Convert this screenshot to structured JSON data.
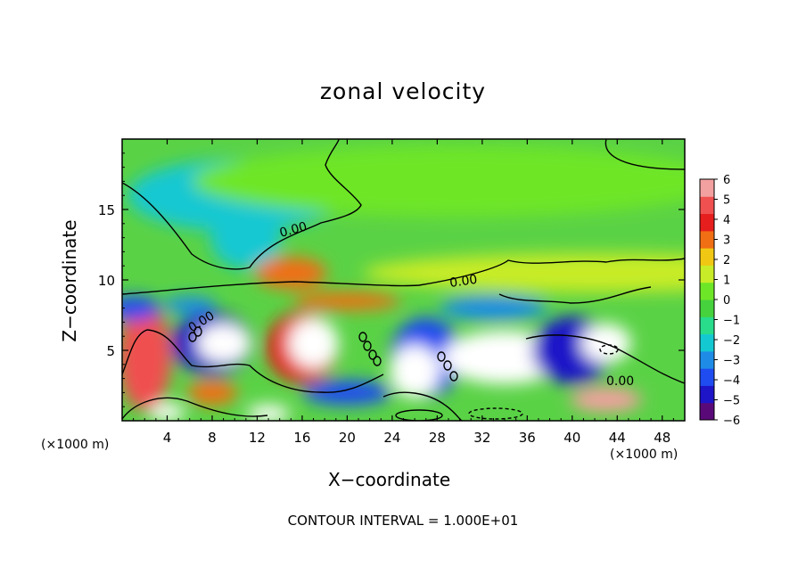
{
  "chart_data": {
    "type": "heatmap",
    "title": "zonal velocity",
    "xlabel": "X−coordinate",
    "ylabel": "Z−coordinate",
    "x_unit_label": "(×1000 m)",
    "z_unit_label": "(×1000 m)",
    "annotation": "CONTOUR INTERVAL = 1.000E+01",
    "xlim": [
      0,
      50
    ],
    "ylim": [
      0,
      20
    ],
    "x_ticks": [
      4,
      8,
      12,
      16,
      20,
      24,
      28,
      32,
      36,
      40,
      44,
      48
    ],
    "y_ticks": [
      5,
      10,
      15
    ],
    "contour_label": "0.00",
    "colorbar": {
      "range": [
        -6,
        6
      ],
      "ticks": [
        6,
        5,
        4,
        3,
        2,
        1,
        0,
        -1,
        -2,
        -3,
        -4,
        -5,
        -6
      ],
      "colors": [
        "#5a0a78",
        "#1e14c8",
        "#1f4cf0",
        "#1e8ce6",
        "#14c8d2",
        "#28dc8c",
        "#46d23c",
        "#6ee628",
        "#c8ec28",
        "#f0c814",
        "#f06e14",
        "#e61e1e",
        "#f05050",
        "#f2a0a0"
      ]
    },
    "features": [
      {
        "x": 10,
        "z": 16,
        "value": -2
      },
      {
        "x": 11,
        "z": 13,
        "value": -2.5
      },
      {
        "x": 30,
        "z": 17,
        "value": 0.5
      },
      {
        "x": 42,
        "z": 10.5,
        "value": 1.5
      },
      {
        "x": 15,
        "z": 10.5,
        "value": 3
      },
      {
        "x": 2,
        "z": 4.5,
        "value": 5
      },
      {
        "x": 8,
        "z": 5.5,
        "value": -5
      },
      {
        "x": 9,
        "z": 5.5,
        "value": 7
      },
      {
        "x": 16,
        "z": 5.2,
        "value": 4
      },
      {
        "x": 17,
        "z": 5.5,
        "value": 7
      },
      {
        "x": 27,
        "z": 4.5,
        "value": -4.5
      },
      {
        "x": 26,
        "z": 3.5,
        "value": 7
      },
      {
        "x": 34,
        "z": 4.5,
        "value": 7
      },
      {
        "x": 40,
        "z": 5,
        "value": -5
      },
      {
        "x": 43,
        "z": 5.5,
        "value": 7
      },
      {
        "x": 43,
        "z": 1.5,
        "value": 6
      },
      {
        "x": 33,
        "z": 8,
        "value": -3
      },
      {
        "x": 6,
        "z": 8.2,
        "value": -3
      },
      {
        "x": 20,
        "z": 8.5,
        "value": 3
      },
      {
        "x": 1,
        "z": 8,
        "value": -4
      },
      {
        "x": 20,
        "z": 2,
        "value": -4.5
      },
      {
        "x": 4,
        "z": 0.6,
        "value": 7
      },
      {
        "x": 13,
        "z": 0.5,
        "value": 7
      },
      {
        "x": 8,
        "z": 2,
        "value": 3.5
      }
    ]
  }
}
